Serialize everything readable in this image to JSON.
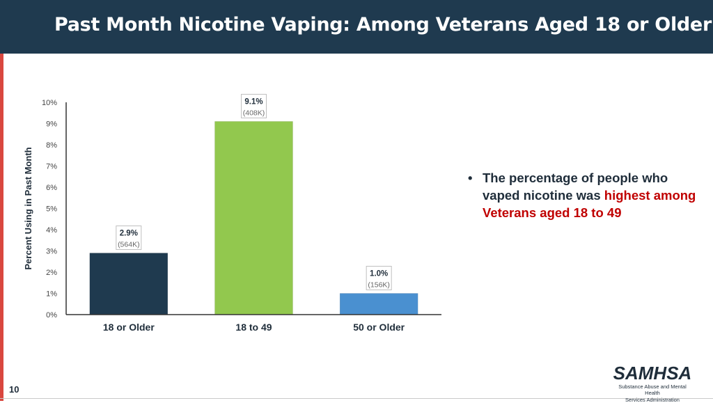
{
  "header": {
    "title": "Past Month Nicotine Vaping: Among Veterans Aged 18 or Older"
  },
  "chart_data": {
    "type": "bar",
    "categories": [
      "18 or Older",
      "18 to 49",
      "50 or Older"
    ],
    "values": [
      2.9,
      9.1,
      1.0
    ],
    "data_labels": [
      "2.9%",
      "9.1%",
      "1.0%"
    ],
    "count_labels": [
      "(564K)",
      "(408K)",
      "(156K)"
    ],
    "colors": [
      "#1f3a4f",
      "#92c84e",
      "#4a90d0"
    ],
    "ylabel": "Percent Using in Past Month",
    "ylim": [
      0,
      10
    ],
    "yticks": [
      0,
      1,
      2,
      3,
      4,
      5,
      6,
      7,
      8,
      9,
      10
    ],
    "ytick_labels": [
      "0%",
      "1%",
      "2%",
      "3%",
      "4%",
      "5%",
      "6%",
      "7%",
      "8%",
      "9%",
      "10%"
    ],
    "grid": false,
    "legend": "none"
  },
  "bullet": {
    "marker": "•",
    "text_before": "The percentage of people who vaped nicotine was ",
    "highlight": "highest among Veterans aged 18 to 49"
  },
  "footer": {
    "page_number": "10",
    "logo_name": "SAMHSA",
    "logo_subtitle_line1": "Substance Abuse and Mental Health",
    "logo_subtitle_line2": "Services Administration"
  }
}
